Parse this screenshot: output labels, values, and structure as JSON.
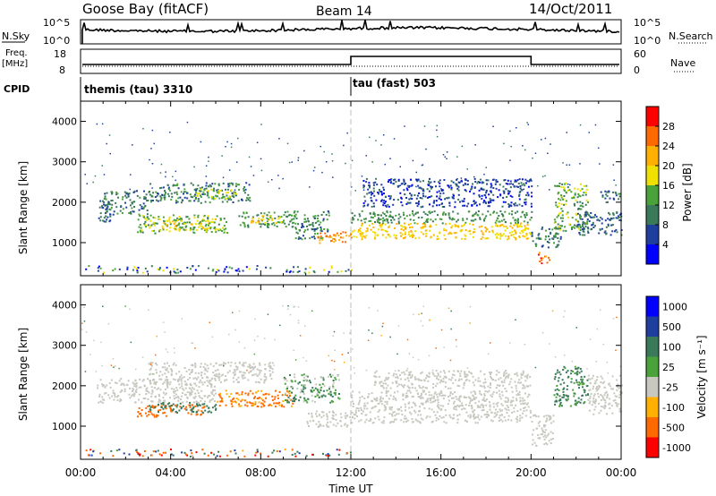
{
  "header": {
    "station": "Goose Bay (fitACF)",
    "beam": "Beam 14",
    "date": "14/Oct/2011"
  },
  "strip1": {
    "left_label": "N.Sky",
    "right_label": "N.Search",
    "left_ticks": [
      "10^5",
      "10^0"
    ],
    "right_ticks": [
      "10^5",
      "10^0"
    ]
  },
  "strip2": {
    "left_label_1": "Freq.",
    "left_label_2": "[MHz]",
    "right_label": "Nave",
    "left_ticks": [
      "18",
      "8"
    ],
    "right_ticks": [
      "60",
      "0"
    ]
  },
  "cpid": {
    "label": "CPID",
    "segments": [
      "themis (tau) 3310",
      "tau (fast) 503"
    ]
  },
  "colors": {
    "power_scale": [
      "#0000ff",
      "#1f3f9f",
      "#3a7a5a",
      "#4aa23a",
      "#f0e000",
      "#ffb000",
      "#ff6a00",
      "#ff0000"
    ],
    "velocity_scale": [
      "#0000ff",
      "#1f3f9f",
      "#3a7a5a",
      "#4aa23a",
      "#c8c8c0",
      "#ffb000",
      "#ff6a00",
      "#ff0000"
    ],
    "ground_scatter": "#c8c8c0"
  },
  "power_colorbar": {
    "label": "Power [dB]",
    "ticks": [
      "4",
      "8",
      "12",
      "16",
      "20",
      "24",
      "28"
    ]
  },
  "velocity_colorbar": {
    "label": "Velocity [m s⁻¹]",
    "ticks": [
      "1000",
      "500",
      "100",
      "25",
      "-25",
      "-100",
      "-500",
      "-1000"
    ]
  },
  "chart_data": [
    {
      "type": "heatmap",
      "title": "",
      "xlabel": "Time UT",
      "ylabel": "Slant Range [km]",
      "x_ticks": [
        "00:00",
        "04:00",
        "08:00",
        "12:00",
        "16:00",
        "20:00",
        "00:00"
      ],
      "y_ticks": [
        "1000",
        "2000",
        "3000",
        "4000"
      ],
      "xlim": [
        0,
        24
      ],
      "ylim": [
        180,
        4500
      ],
      "quantity": "Power [dB]",
      "marker_time_hours": 12,
      "bands": [
        {
          "t0": 0.7,
          "t1": 1.3,
          "r0": 1500,
          "r1": 2100,
          "value": 8
        },
        {
          "t0": 1.0,
          "t1": 3.0,
          "r0": 1700,
          "r1": 2300,
          "value": 10
        },
        {
          "t0": 2.5,
          "t1": 6.5,
          "r0": 1250,
          "r1": 1700,
          "value": 14
        },
        {
          "t0": 3.5,
          "t1": 6.0,
          "r0": 1300,
          "r1": 1600,
          "value": 18
        },
        {
          "t0": 3.0,
          "t1": 7.5,
          "r0": 2000,
          "r1": 2500,
          "value": 10
        },
        {
          "t0": 5.0,
          "t1": 7.0,
          "r0": 2100,
          "r1": 2350,
          "value": 16
        },
        {
          "t0": 7.0,
          "t1": 9.5,
          "r0": 1400,
          "r1": 1800,
          "value": 12
        },
        {
          "t0": 7.5,
          "t1": 9.0,
          "r0": 1500,
          "r1": 1700,
          "value": 18
        },
        {
          "t0": 9.5,
          "t1": 11.0,
          "r0": 1100,
          "r1": 1800,
          "value": 10
        },
        {
          "t0": 10.5,
          "t1": 12.0,
          "r0": 1000,
          "r1": 1300,
          "value": 24
        },
        {
          "t0": 12.0,
          "t1": 20.0,
          "r0": 1100,
          "r1": 1500,
          "value": 20
        },
        {
          "t0": 12.0,
          "t1": 20.0,
          "r0": 1500,
          "r1": 1800,
          "value": 12
        },
        {
          "t0": 12.5,
          "t1": 20.0,
          "r0": 1900,
          "r1": 2600,
          "value": 6
        },
        {
          "t0": 20.0,
          "t1": 21.3,
          "r0": 900,
          "r1": 1400,
          "value": 10
        },
        {
          "t0": 20.3,
          "t1": 20.8,
          "r0": 500,
          "r1": 800,
          "value": 26
        },
        {
          "t0": 21.0,
          "t1": 22.5,
          "r0": 1300,
          "r1": 2500,
          "value": 14
        },
        {
          "t0": 22.0,
          "t1": 24.0,
          "r0": 1200,
          "r1": 1800,
          "value": 8
        },
        {
          "t0": 23.0,
          "t1": 24.0,
          "r0": 2000,
          "r1": 2300,
          "value": 10
        }
      ]
    },
    {
      "type": "heatmap",
      "title": "",
      "xlabel": "Time UT",
      "ylabel": "Slant Range [km]",
      "x_ticks": [
        "00:00",
        "04:00",
        "08:00",
        "12:00",
        "16:00",
        "20:00",
        "00:00"
      ],
      "y_ticks": [
        "1000",
        "2000",
        "3000",
        "4000"
      ],
      "xlim": [
        0,
        24
      ],
      "ylim": [
        180,
        4500
      ],
      "quantity": "Velocity [m s⁻¹]",
      "marker_time_hours": 12,
      "bands": [
        {
          "t0": 0.7,
          "t1": 6.0,
          "r0": 1600,
          "r1": 2200,
          "value": 0,
          "ground": true
        },
        {
          "t0": 3.0,
          "t1": 8.5,
          "r0": 2100,
          "r1": 2600,
          "value": 0,
          "ground": true
        },
        {
          "t0": 2.5,
          "t1": 5.5,
          "r0": 1250,
          "r1": 1550,
          "value": -200
        },
        {
          "t0": 3.0,
          "t1": 6.0,
          "r0": 1350,
          "r1": 1600,
          "value": 200
        },
        {
          "t0": 6.0,
          "t1": 9.5,
          "r0": 1500,
          "r1": 1900,
          "value": -150
        },
        {
          "t0": 9.0,
          "t1": 11.5,
          "r0": 1600,
          "r1": 2300,
          "value": 80
        },
        {
          "t0": 10.0,
          "t1": 12.0,
          "r0": 1000,
          "r1": 1400,
          "value": 0,
          "ground": true
        },
        {
          "t0": 12.0,
          "t1": 20.0,
          "r0": 1100,
          "r1": 1900,
          "value": 0,
          "ground": true
        },
        {
          "t0": 13.0,
          "t1": 20.0,
          "r0": 1950,
          "r1": 2400,
          "value": 0,
          "ground": true
        },
        {
          "t0": 20.0,
          "t1": 21.0,
          "r0": 500,
          "r1": 1300,
          "value": 0,
          "ground": true
        },
        {
          "t0": 21.0,
          "t1": 22.5,
          "r0": 1500,
          "r1": 2500,
          "value": 150
        },
        {
          "t0": 22.5,
          "t1": 24.0,
          "r0": 1300,
          "r1": 2300,
          "value": 0,
          "ground": true
        }
      ]
    }
  ]
}
